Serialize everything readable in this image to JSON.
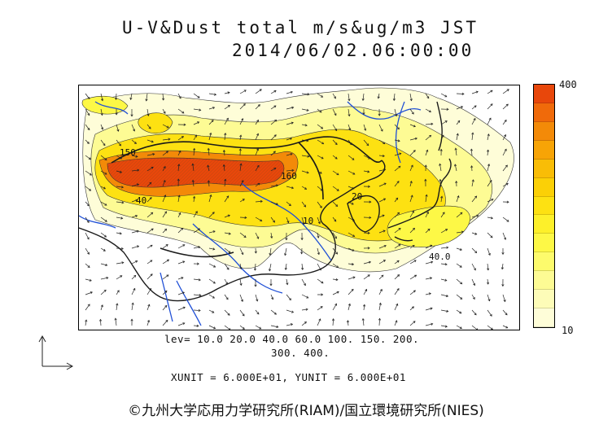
{
  "header": {
    "title": "U-V&Dust total m/s&ug/m3 JST",
    "datetime": "2014/06/02.06:00:00"
  },
  "map": {
    "contour_labels": [
      "150",
      "40",
      "20",
      "10",
      "160",
      "40.0"
    ],
    "colors": {
      "coastline": "#1a1a1a",
      "rivers": "#1f4fd6",
      "vectors": "#222222"
    }
  },
  "colorbar": {
    "max_label": "400",
    "min_label": "10",
    "colors": [
      "#e8470b",
      "#f06a0a",
      "#f38a08",
      "#f7a406",
      "#f9bd06",
      "#fbd006",
      "#fde112",
      "#fdf02a",
      "#fdf846",
      "#fdfb6c",
      "#fdfb94",
      "#fdfcb8",
      "#fefdd8"
    ]
  },
  "legend": {
    "levels_line1": "lev= 10.0 20.0 40.0 60.0 100. 150. 200.",
    "levels_line2": "300. 400.",
    "units": "XUNIT = 6.000E+01, YUNIT = 6.000E+01"
  },
  "footer": {
    "credit": "©九州大学応用力学研究所(RIAM)/国立環境研究所(NIES)"
  }
}
